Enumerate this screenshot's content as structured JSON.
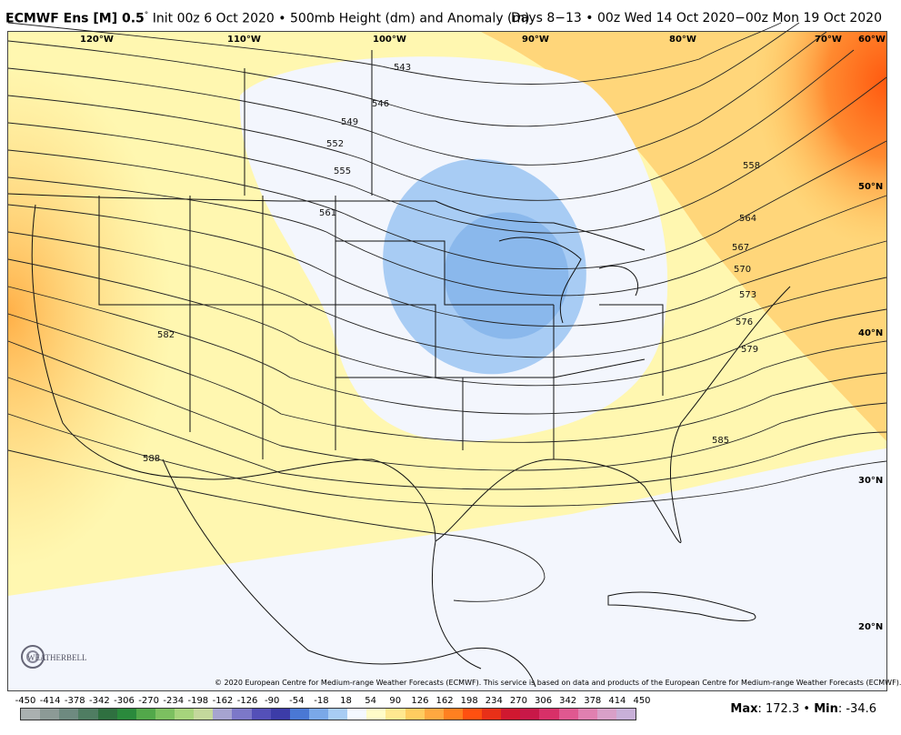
{
  "header": {
    "model": "ECMWF Ens [M] 0.5",
    "degree": "°",
    "init": "Init 00z 6 Oct 2020",
    "field": "500mb Height (dm) and Anomaly (m)",
    "valid": "Days 8−13 • 00z Wed 14 Oct 2020−00z Mon 19 Oct 2020"
  },
  "longitudes": [
    "120°W",
    "110°W",
    "100°W",
    "90°W",
    "80°W",
    "70°W",
    "60°W"
  ],
  "latitudes": [
    "50°N",
    "40°N",
    "30°N",
    "20°N"
  ],
  "contour_labels": [
    "543",
    "546",
    "549",
    "552",
    "555",
    "561",
    "558",
    "564",
    "567",
    "570",
    "573",
    "576",
    "579",
    "582",
    "585",
    "588"
  ],
  "copyright": "© 2020 European Centre for Medium-range Weather Forecasts (ECMWF). This service is based on data and products of the European Centre for Medium-range Weather Forecasts (ECMWF).",
  "logo_text": "WEATHERBELL",
  "colorbar": {
    "ticks": [
      "-450",
      "-414",
      "-378",
      "-342",
      "-306",
      "-270",
      "-234",
      "-198",
      "-162",
      "-126",
      "-90",
      "-54",
      "-18",
      "18",
      "54",
      "90",
      "126",
      "162",
      "198",
      "234",
      "270",
      "306",
      "342",
      "378",
      "414",
      "450"
    ],
    "colors": [
      "#aab0b0",
      "#8c9a96",
      "#6e8a80",
      "#4f7d62",
      "#2f7040",
      "#2a8a3c",
      "#52a84a",
      "#7cc060",
      "#a6d47c",
      "#c4d89c",
      "#a6a4d0",
      "#7c78c8",
      "#5450b8",
      "#3c3ca8",
      "#4a78d4",
      "#7aa8e8",
      "#a8ccf4",
      "#f4f8ff",
      "#fffcc8",
      "#ffe890",
      "#ffcc60",
      "#ffa840",
      "#ff8020",
      "#ff5010",
      "#e83018",
      "#d01830",
      "#c81848",
      "#d83068",
      "#e05890",
      "#e080b0",
      "#d8a0c8",
      "#c8b0d8"
    ]
  },
  "stats": {
    "max_label": "Max",
    "max": "172.3",
    "sep": "•",
    "min_label": "Min",
    "min": "-34.6"
  }
}
